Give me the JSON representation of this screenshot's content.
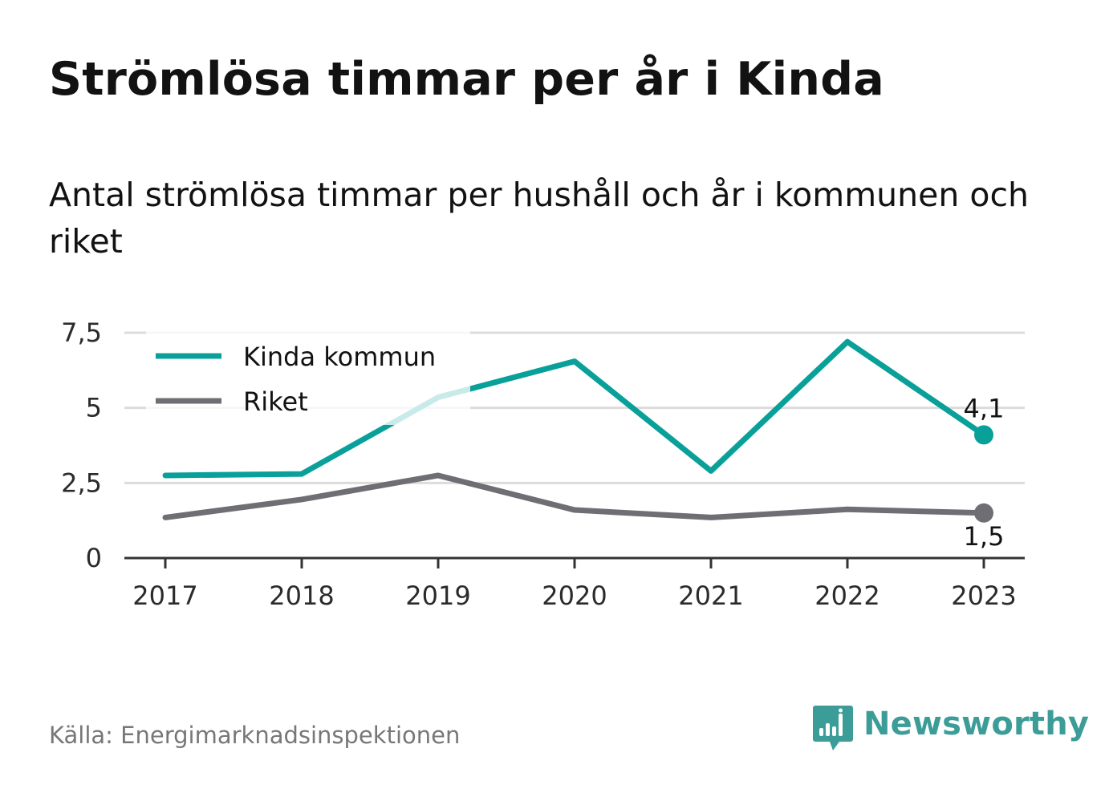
{
  "title": "Strömlösa timmar per år i Kinda",
  "subtitle": "Antal strömlösa timmar per hushåll och år i kommunen och riket",
  "source": "Källa: Energimarknadsinspektionen",
  "brand": {
    "name": "Newsworthy",
    "icon": "newsworthy-bar-chart-icon",
    "color": "#3c9d98"
  },
  "colors": {
    "kinda": "#0aa09a",
    "riket": "#6e6e74",
    "grid": "#dcdcdc",
    "axis": "#333333"
  },
  "chart_data": {
    "type": "line",
    "x": [
      "2017",
      "2018",
      "2019",
      "2020",
      "2021",
      "2022",
      "2023"
    ],
    "ylim": [
      0,
      7.5
    ],
    "yticks": [
      0,
      2.5,
      5,
      7.5
    ],
    "ytick_labels": [
      "0",
      "2,5",
      "5",
      "7,5"
    ],
    "grid": true,
    "legend_position": "top-left",
    "series": [
      {
        "name": "Kinda kommun",
        "values": [
          2.75,
          2.8,
          5.35,
          6.55,
          2.9,
          7.2,
          4.1
        ],
        "end_label": "4,1"
      },
      {
        "name": "Riket",
        "values": [
          1.35,
          1.95,
          2.75,
          1.6,
          1.35,
          1.62,
          1.5
        ],
        "end_label": "1,5"
      }
    ]
  }
}
